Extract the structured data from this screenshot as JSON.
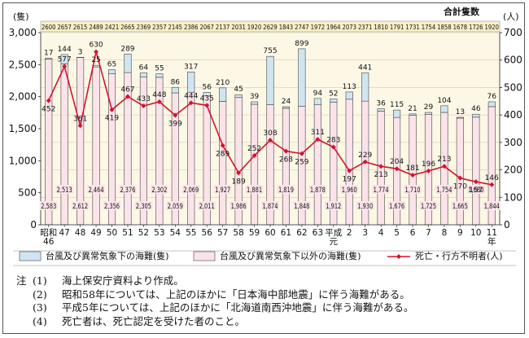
{
  "chart_data": {
    "type": "bar+line",
    "y_left_label": "(隻)",
    "y_right_label": "(人)",
    "total_label": "合計隻数",
    "y_left_ticks": [
      "0",
      "500",
      "1,000",
      "1,500",
      "2,000",
      "2,500",
      "3,000"
    ],
    "y_right_ticks": [
      "0",
      "100",
      "200",
      "300",
      "400",
      "500",
      "600",
      "700"
    ],
    "ylim_left": [
      0,
      3000
    ],
    "ylim_right": [
      0,
      700
    ],
    "categories": [
      {
        "line1": "昭和",
        "line2": "46"
      },
      {
        "line1": "47",
        "line2": ""
      },
      {
        "line1": "48",
        "line2": ""
      },
      {
        "line1": "49",
        "line2": ""
      },
      {
        "line1": "50",
        "line2": ""
      },
      {
        "line1": "51",
        "line2": ""
      },
      {
        "line1": "52",
        "line2": ""
      },
      {
        "line1": "53",
        "line2": ""
      },
      {
        "line1": "54",
        "line2": ""
      },
      {
        "line1": "55",
        "line2": ""
      },
      {
        "line1": "56",
        "line2": ""
      },
      {
        "line1": "57",
        "line2": ""
      },
      {
        "line1": "58",
        "line2": ""
      },
      {
        "line1": "59",
        "line2": ""
      },
      {
        "line1": "60",
        "line2": ""
      },
      {
        "line1": "61",
        "line2": ""
      },
      {
        "line1": "62",
        "line2": ""
      },
      {
        "line1": "63",
        "line2": ""
      },
      {
        "line1": "平成",
        "line2": "元"
      },
      {
        "line1": "2",
        "line2": ""
      },
      {
        "line1": "3",
        "line2": ""
      },
      {
        "line1": "4",
        "line2": ""
      },
      {
        "line1": "5",
        "line2": ""
      },
      {
        "line1": "6",
        "line2": ""
      },
      {
        "line1": "7",
        "line2": ""
      },
      {
        "line1": "8",
        "line2": ""
      },
      {
        "line1": "9",
        "line2": ""
      },
      {
        "line1": "10",
        "line2": ""
      },
      {
        "line1": "11",
        "line2": "年"
      }
    ],
    "series": [
      {
        "name": "台風及び異常気象下以外の海難(隻)",
        "values": [
          2583,
          2513,
          2612,
          2464,
          2356,
          2376,
          2305,
          2302,
          2059,
          2069,
          2011,
          1927,
          1986,
          1881,
          1874,
          1819,
          1848,
          1878,
          1912,
          1960,
          1930,
          1774,
          1676,
          1710,
          1725,
          1754,
          1665,
          1680,
          1844
        ],
        "labels": [
          "2,583",
          "2,513",
          "2,612",
          "2,464",
          "2,356",
          "2,376",
          "2,305",
          "2,302",
          "2,059",
          "2,069",
          "2,011",
          "1,927",
          "1,986",
          "1,881",
          "1,874",
          "1,819",
          "1,848",
          "1,878",
          "1,912",
          "1,960",
          "1,930",
          "1,774",
          "1,676",
          "1,710",
          "1,725",
          "1,754",
          "1,665",
          "1,680",
          "1,844"
        ]
      },
      {
        "name": "台風及び異常気象下の海難(隻)",
        "values": [
          17,
          144,
          3,
          25,
          65,
          289,
          64,
          55,
          86,
          317,
          56,
          210,
          45,
          39,
          755,
          24,
          899,
          94,
          52,
          113,
          441,
          36,
          115,
          21,
          29,
          104,
          13,
          46,
          76
        ],
        "labels": [
          "17",
          "144",
          "3",
          "25",
          "65",
          "289",
          "64",
          "55",
          "86",
          "317",
          "56",
          "210",
          "45",
          "39",
          "755",
          "24",
          "899",
          "94",
          "52",
          "113",
          "441",
          "36",
          "115",
          "21",
          "29",
          "104",
          "13",
          "46",
          "76"
        ]
      },
      {
        "name": "死亡・行方不明者(人)",
        "values": [
          452,
          577,
          361,
          630,
          419,
          467,
          433,
          448,
          399,
          444,
          435,
          289,
          189,
          252,
          308,
          268,
          259,
          311,
          283,
          197,
          229,
          213,
          204,
          181,
          196,
          213,
          170,
          157,
          146
        ],
        "labels": [
          "452",
          "577",
          "361",
          "630",
          "419",
          "467",
          "433",
          "448",
          "399",
          "444",
          "435",
          "289",
          "189",
          "252",
          "308",
          "268",
          "259",
          "311",
          "283",
          "197",
          "229",
          "213",
          "204",
          "181",
          "196",
          "213",
          "170",
          "157",
          "146"
        ]
      }
    ],
    "totals": [
      "2600",
      "2657",
      "2615",
      "2489",
      "2421",
      "2665",
      "2369",
      "2357",
      "2145",
      "2386",
      "2067",
      "2137",
      "2031",
      "1920",
      "2629",
      "1843",
      "2747",
      "1972",
      "1964",
      "2073",
      "2371",
      "1810",
      "1791",
      "1731",
      "1754",
      "1858",
      "1678",
      "1726",
      "1920"
    ],
    "legend": [
      {
        "label": "台風及び異常気象下の海難(隻)",
        "color": "#cfe6f2"
      },
      {
        "label": "台風及び異常気象下以外の海難(隻)",
        "color": "#fbe3ea"
      },
      {
        "label": "死亡・行方不明者(人)",
        "color": "#d4132c"
      }
    ],
    "colors": {
      "total_band": "#f8efc6",
      "plot_bg": "#fdf8e6",
      "line": "#d4132c",
      "bar_pink": "#fbe3ea",
      "bar_blue": "#cfe6f2"
    }
  },
  "notes": [
    {
      "mark": "注",
      "num": "(1)",
      "text": "海上保安庁資料より作成。"
    },
    {
      "mark": "",
      "num": "(2)",
      "text": "昭和58年については、上記のほかに「日本海中部地震」に伴う海難がある。"
    },
    {
      "mark": "",
      "num": "(3)",
      "text": "平成5年については、上記のほかに「北海道南西沖地震」に伴う海難がある。"
    },
    {
      "mark": "",
      "num": "(4)",
      "text": "死亡者は、死亡認定を受けた者のこと。"
    }
  ]
}
